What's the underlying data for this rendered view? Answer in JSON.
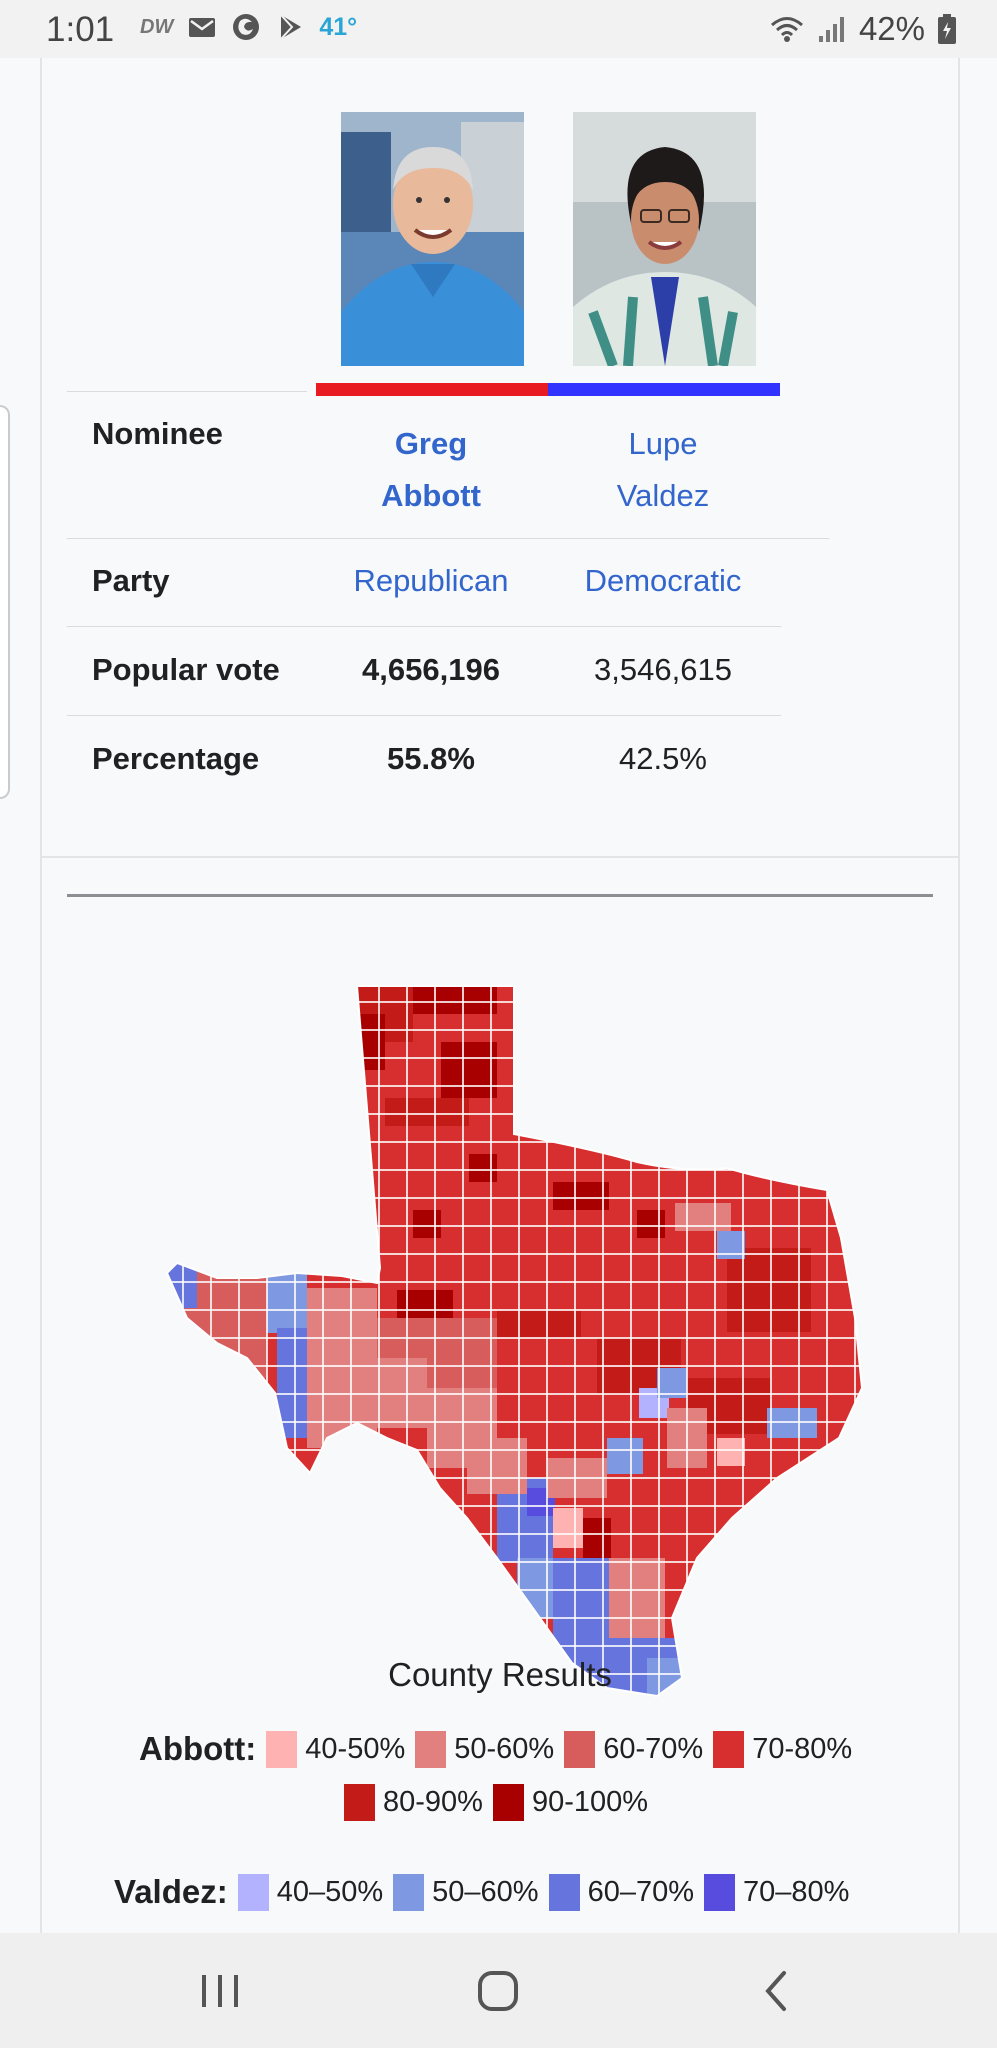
{
  "status_bar": {
    "time": "1:01",
    "dw_label": "DW",
    "temperature": "41°",
    "battery": "42%",
    "icons": [
      "dw-icon",
      "mail-icon",
      "firefox-icon",
      "play-store-icon",
      "wifi-icon",
      "signal-icon",
      "battery-icon"
    ]
  },
  "infobox": {
    "candidates": [
      {
        "name_line1": "Greg",
        "name_line2": "Abbott",
        "party": "Republican",
        "popular_vote": "4,656,196",
        "percentage": "55.8%",
        "color": "#e81b23"
      },
      {
        "name_line1": "Lupe",
        "name_line2": "Valdez",
        "party": "Democratic",
        "popular_vote": "3,546,615",
        "percentage": "42.5%",
        "color": "#3333ff"
      }
    ],
    "row_labels": {
      "nominee": "Nominee",
      "party": "Party",
      "popular_vote": "Popular vote",
      "percentage": "Percentage"
    }
  },
  "map": {
    "caption": "County Results",
    "legend": {
      "abbott_label": "Abbott:",
      "abbott_items": [
        {
          "label": "40-50%",
          "color": "#ffb2b2"
        },
        {
          "label": "50-60%",
          "color": "#e27f7f"
        },
        {
          "label": "60-70%",
          "color": "#d75d5d"
        },
        {
          "label": "70-80%",
          "color": "#d72f30"
        },
        {
          "label": "80-90%",
          "color": "#c21b18"
        },
        {
          "label": "90-100%",
          "color": "#a80000"
        }
      ],
      "valdez_label": "Valdez:",
      "valdez_items": [
        {
          "label": "40–50%",
          "color": "#b2b2ff"
        },
        {
          "label": "50–60%",
          "color": "#7f98e2"
        },
        {
          "label": "60–70%",
          "color": "#6674de"
        },
        {
          "label": "70–80%",
          "color": "#584cde"
        }
      ]
    }
  },
  "nav_bar": {
    "icons": [
      "recent-apps-icon",
      "home-icon",
      "back-icon"
    ]
  }
}
